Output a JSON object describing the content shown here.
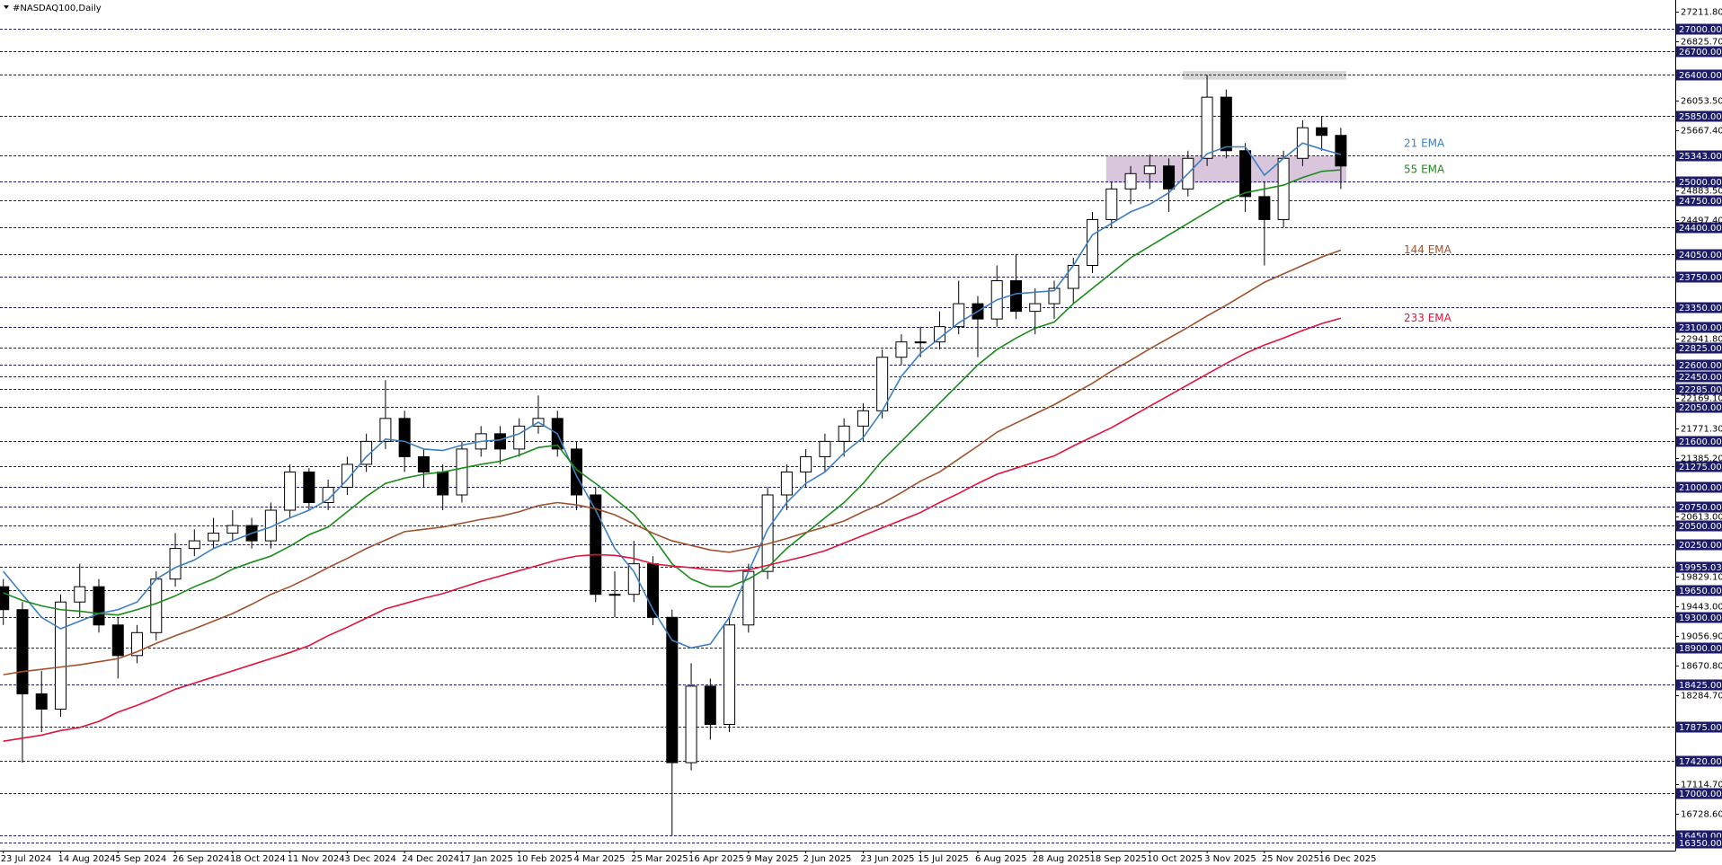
{
  "chart_data": {
    "type": "candlestick",
    "title": "#NASDAQ100,Daily",
    "categories": [
      "23 Jul 2024",
      null,
      null,
      "14 Aug 2024",
      null,
      null,
      "5 Sep 2024",
      null,
      null,
      "26 Sep 2024",
      null,
      null,
      "18 Oct 2024",
      null,
      null,
      "11 Nov 2024",
      null,
      null,
      "3 Dec 2024",
      null,
      null,
      "24 Dec 2024",
      null,
      null,
      "17 Jan 2025",
      null,
      null,
      "10 Feb 2025",
      null,
      null,
      "4 Mar 2025",
      null,
      null,
      "25 Mar 2025",
      null,
      null,
      "16 Apr 2025",
      null,
      null,
      "9 May 2025",
      null,
      null,
      "2 Jun 2025",
      null,
      null,
      "23 Jun 2025",
      null,
      null,
      "15 Jul 2025",
      null,
      null,
      "6 Aug 2025",
      null,
      null,
      "28 Aug 2025",
      null,
      null,
      "18 Sep 2025",
      null,
      null,
      "10 Oct 2025",
      null,
      null,
      "3 Nov 2025",
      null,
      null,
      "25 Nov 2025",
      null,
      null,
      "16 Dec 2025",
      null
    ],
    "open": [
      19700,
      19400,
      18300,
      18100,
      19500,
      19700,
      19200,
      18800,
      19100,
      19800,
      20200,
      20300,
      20400,
      20500,
      20300,
      20700,
      21200,
      20800,
      21000,
      21300,
      21600,
      21900,
      21400,
      21200,
      20900,
      21500,
      21700,
      21500,
      21800,
      21900,
      21500,
      20900,
      19600,
      19600,
      20000,
      19300,
      17400,
      18400,
      17900,
      19200,
      19900,
      20900,
      21200,
      21400,
      21600,
      21800,
      22000,
      22700,
      22900,
      22900,
      23100,
      23400,
      23200,
      23700,
      23300,
      23400,
      23600,
      23900,
      24500,
      24900,
      25100,
      25200,
      24900,
      25300,
      26100,
      25400,
      24800,
      24500,
      25300,
      25700,
      25600
    ],
    "high": [
      19800,
      19500,
      18600,
      19600,
      20000,
      19800,
      19300,
      19200,
      19900,
      20400,
      20450,
      20600,
      20700,
      20600,
      20800,
      21300,
      21250,
      21100,
      21400,
      21700,
      22400,
      22000,
      21500,
      21300,
      21600,
      21800,
      21800,
      21900,
      22200,
      22000,
      21600,
      21000,
      19900,
      20300,
      20100,
      19400,
      18700,
      18500,
      19300,
      20000,
      21000,
      21300,
      21500,
      21700,
      21900,
      22100,
      22800,
      23000,
      23100,
      23300,
      23700,
      23500,
      23900,
      24050,
      23600,
      23700,
      24000,
      24600,
      25000,
      25200,
      25350,
      25300,
      25400,
      26390,
      26200,
      25500,
      25000,
      25400,
      25800,
      25850,
      25700
    ],
    "low": [
      19200,
      17400,
      17800,
      18000,
      19300,
      19100,
      18500,
      18700,
      19000,
      19700,
      20100,
      20200,
      20300,
      20200,
      20200,
      20600,
      20700,
      20700,
      20900,
      21200,
      21500,
      21200,
      21000,
      20700,
      20800,
      21400,
      21300,
      21400,
      21700,
      21400,
      20700,
      19500,
      19300,
      19500,
      19200,
      16450,
      17300,
      17700,
      17800,
      19100,
      19800,
      20700,
      21000,
      21200,
      21400,
      21600,
      21900,
      22600,
      22700,
      22800,
      23000,
      22700,
      23100,
      23200,
      23000,
      23200,
      23400,
      23800,
      24400,
      24700,
      24900,
      24600,
      24800,
      25200,
      25300,
      24600,
      23900,
      24400,
      25200,
      25400,
      24900
    ],
    "close": [
      19400,
      18300,
      18100,
      19500,
      19700,
      19200,
      18800,
      19100,
      19800,
      20200,
      20300,
      20400,
      20500,
      20300,
      20700,
      21200,
      20800,
      21000,
      21300,
      21600,
      21900,
      21400,
      21200,
      20900,
      21500,
      21700,
      21500,
      21800,
      21900,
      21500,
      20900,
      19600,
      19600,
      20000,
      19300,
      17400,
      18400,
      17900,
      19200,
      19900,
      20900,
      21200,
      21400,
      21600,
      21800,
      22000,
      22700,
      22900,
      22900,
      23100,
      23400,
      23200,
      23700,
      23300,
      23400,
      23600,
      23900,
      24500,
      24900,
      25100,
      25200,
      24900,
      25300,
      26100,
      25400,
      24800,
      24500,
      25300,
      25700,
      25600,
      25200
    ],
    "candle_color": "#000000",
    "series": [
      {
        "name": "21 EMA",
        "color": "#3d7fc1",
        "values": [
          19900,
          19600,
          19300,
          19150,
          19250,
          19350,
          19400,
          19500,
          19800,
          19950,
          20050,
          20200,
          20300,
          20400,
          20480,
          20600,
          20700,
          20840,
          21100,
          21400,
          21630,
          21600,
          21500,
          21480,
          21550,
          21600,
          21620,
          21700,
          21850,
          21700,
          21150,
          20700,
          20200,
          19900,
          19400,
          19000,
          18900,
          18950,
          19300,
          19900,
          20450,
          20800,
          21050,
          21200,
          21450,
          21650,
          22000,
          22450,
          22750,
          22950,
          23150,
          23300,
          23450,
          23530,
          23550,
          23570,
          23900,
          24300,
          24450,
          24600,
          24700,
          24850,
          25100,
          25360,
          25450,
          25450,
          25080,
          25300,
          25500,
          25420,
          25350
        ]
      },
      {
        "name": "55 EMA",
        "color": "#1b8c1b",
        "values": [
          19620,
          19520,
          19450,
          19400,
          19380,
          19350,
          19330,
          19400,
          19480,
          19580,
          19700,
          19800,
          19930,
          20020,
          20100,
          20230,
          20380,
          20480,
          20680,
          20880,
          21050,
          21120,
          21170,
          21200,
          21250,
          21300,
          21340,
          21420,
          21520,
          21550,
          21230,
          21050,
          20850,
          20650,
          20350,
          20000,
          19800,
          19700,
          19700,
          19800,
          19950,
          20200,
          20400,
          20600,
          20800,
          21050,
          21350,
          21600,
          21850,
          22100,
          22350,
          22600,
          22800,
          22950,
          23080,
          23160,
          23400,
          23600,
          23800,
          24000,
          24150,
          24300,
          24450,
          24600,
          24750,
          24850,
          24900,
          24950,
          25050,
          25130,
          25150
        ]
      },
      {
        "name": "144 EMA",
        "color": "#a0522d",
        "values": [
          18550,
          18590,
          18620,
          18650,
          18680,
          18720,
          18760,
          18850,
          18960,
          19060,
          19150,
          19250,
          19350,
          19470,
          19600,
          19700,
          19820,
          19950,
          20070,
          20200,
          20310,
          20420,
          20450,
          20480,
          20530,
          20580,
          20620,
          20680,
          20760,
          20800,
          20770,
          20720,
          20640,
          20520,
          20400,
          20300,
          20240,
          20180,
          20150,
          20200,
          20260,
          20330,
          20410,
          20480,
          20560,
          20680,
          20790,
          20930,
          21080,
          21200,
          21370,
          21540,
          21720,
          21840,
          21960,
          22080,
          22220,
          22360,
          22520,
          22660,
          22810,
          22950,
          23090,
          23240,
          23380,
          23530,
          23680,
          23790,
          23900,
          24010,
          24100
        ]
      },
      {
        "name": "233 EMA",
        "color": "#e0143c",
        "values": [
          17680,
          17720,
          17760,
          17820,
          17860,
          17940,
          18060,
          18150,
          18250,
          18360,
          18440,
          18520,
          18600,
          18680,
          18760,
          18840,
          18930,
          19060,
          19170,
          19290,
          19410,
          19480,
          19550,
          19610,
          19690,
          19770,
          19840,
          19910,
          19980,
          20050,
          20100,
          20120,
          20110,
          20070,
          20000,
          19970,
          19950,
          19920,
          19900,
          19920,
          19980,
          20040,
          20100,
          20170,
          20270,
          20370,
          20470,
          20570,
          20670,
          20800,
          20920,
          21050,
          21170,
          21250,
          21330,
          21410,
          21540,
          21660,
          21780,
          21920,
          22060,
          22200,
          22340,
          22480,
          22620,
          22750,
          22860,
          22950,
          23050,
          23140,
          23210
        ]
      }
    ],
    "ylim": [
      16250,
      27370
    ],
    "yticks": [
      {
        "value": 27211.8,
        "label": "27211.80"
      },
      {
        "value": 26825.7,
        "label": "26825.70"
      },
      {
        "value": 26053.5,
        "label": "26053.50"
      },
      {
        "value": 25667.4,
        "label": "25667.40"
      },
      {
        "value": 24883.5,
        "label": "24883.50"
      },
      {
        "value": 24497.4,
        "label": "24497.40"
      },
      {
        "value": 22941.8,
        "label": "22941.80"
      },
      {
        "value": 22169.1,
        "label": "22169.10"
      },
      {
        "value": 21771.3,
        "label": "21771.30"
      },
      {
        "value": 21385.2,
        "label": "21385.20"
      },
      {
        "value": 20613,
        "label": "20613.00"
      },
      {
        "value": 19829.1,
        "label": "19829.10"
      },
      {
        "value": 19443,
        "label": "19443.00"
      },
      {
        "value": 19056.9,
        "label": "19056.90"
      },
      {
        "value": 18670.8,
        "label": "18670.80"
      },
      {
        "value": 18284.7,
        "label": "18284.70"
      },
      {
        "value": 17114.7,
        "label": "17114.70"
      },
      {
        "value": 16728.6,
        "label": "16728.60"
      }
    ],
    "levels": [
      {
        "value": 27000,
        "label": "27000.00"
      },
      {
        "value": 26700,
        "label": "26700.00"
      },
      {
        "value": 26400,
        "label": "26400.00"
      },
      {
        "value": 25850,
        "label": "25850.00"
      },
      {
        "value": 25343,
        "label": "25343.00"
      },
      {
        "value": 25000,
        "label": "25000.00"
      },
      {
        "value": 24750,
        "label": "24750.00"
      },
      {
        "value": 24400,
        "label": "24400.00"
      },
      {
        "value": 24050,
        "label": "24050.00"
      },
      {
        "value": 23750,
        "label": "23750.00"
      },
      {
        "value": 23350,
        "label": "23350.00"
      },
      {
        "value": 23100,
        "label": "23100.00"
      },
      {
        "value": 22825,
        "label": "22825.00"
      },
      {
        "value": 22600,
        "label": "22600.00"
      },
      {
        "value": 22450,
        "label": "22450.00"
      },
      {
        "value": 22285,
        "label": "22285.00"
      },
      {
        "value": 22050,
        "label": "22050.00"
      },
      {
        "value": 21600,
        "label": "21600.00"
      },
      {
        "value": 21275,
        "label": "21275.00"
      },
      {
        "value": 21000,
        "label": "21000.00"
      },
      {
        "value": 20750,
        "label": "20750.00"
      },
      {
        "value": 20500,
        "label": "20500.00"
      },
      {
        "value": 20250,
        "label": "20250.00"
      },
      {
        "value": 19955.03,
        "label": "19955.03"
      },
      {
        "value": 19650,
        "label": "19650.00"
      },
      {
        "value": 19300,
        "label": "19300.00"
      },
      {
        "value": 18900,
        "label": "18900.00"
      },
      {
        "value": 18425,
        "label": "18425.00"
      },
      {
        "value": 17875,
        "label": "17875.00"
      },
      {
        "value": 17420,
        "label": "17420.00"
      },
      {
        "value": 17000,
        "label": "17000.00"
      },
      {
        "value": 16450,
        "label": "16450.00"
      },
      {
        "value": 16350,
        "label": "16350.00"
      }
    ],
    "level_color": "#1c1c6b",
    "zones": [
      {
        "ylim": [
          24980,
          25330
        ],
        "color": "#d9c6dd"
      },
      {
        "ylim": [
          26330,
          26440
        ],
        "color": "#d6d6d6"
      }
    ]
  }
}
